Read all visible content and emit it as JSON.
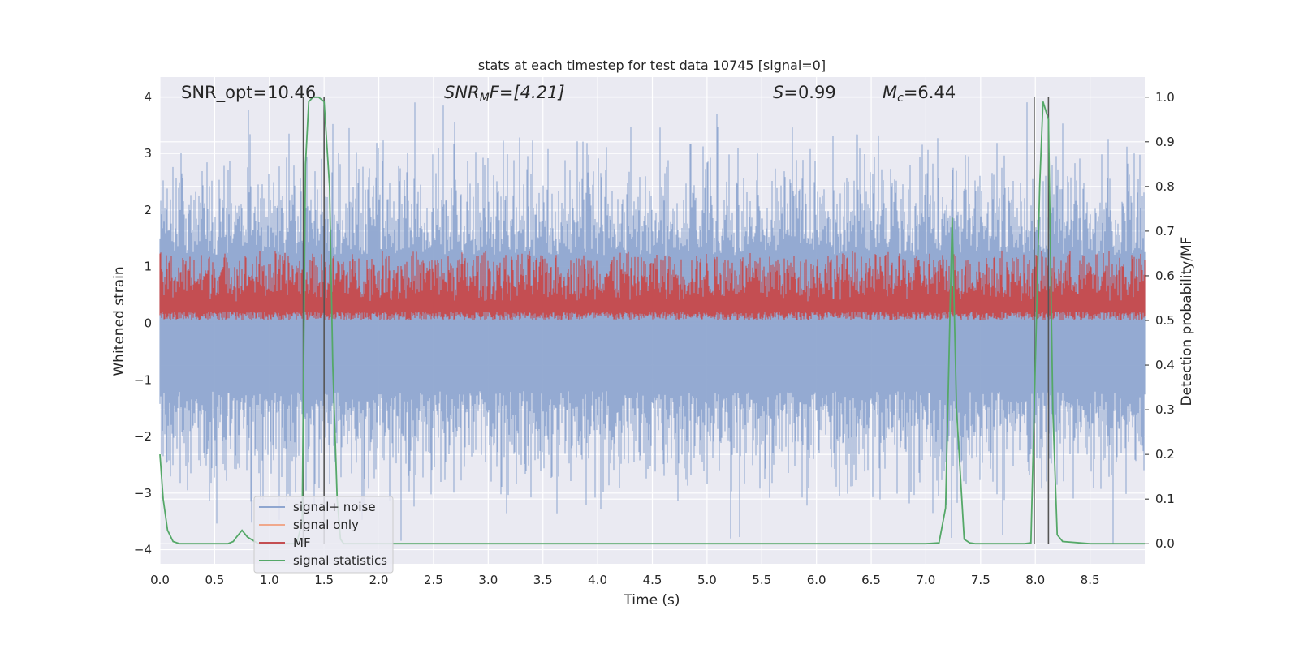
{
  "chart_data": {
    "type": "line",
    "title": "stats at each timestep for test data 10745 [signal=0]",
    "xlabel": "Time (s)",
    "ylabel": "Whitened strain",
    "y2label": "Detection probability/MF",
    "xlim": [
      0,
      9.0
    ],
    "ylim": [
      -4.25,
      4.35
    ],
    "y2lim": [
      -0.045,
      1.045
    ],
    "xticks": [
      "0.0",
      "0.5",
      "1.0",
      "1.5",
      "2.0",
      "2.5",
      "3.0",
      "3.5",
      "4.0",
      "4.5",
      "5.0",
      "5.5",
      "6.0",
      "6.5",
      "7.0",
      "7.5",
      "8.0",
      "8.5"
    ],
    "yticks": [
      "4",
      "3",
      "2",
      "1",
      "0",
      "−1",
      "−2",
      "−3",
      "−4"
    ],
    "y2ticks": [
      "1.0",
      "0.9",
      "0.8",
      "0.7",
      "0.6",
      "0.5",
      "0.4",
      "0.3",
      "0.2",
      "0.1",
      "0.0"
    ],
    "annotations": {
      "snr_opt": "SNR_opt=10.46",
      "snr_mf_sym": "SNR",
      "snr_mf_sub": "M",
      "snr_mf_rest": "F=[4.21]",
      "s_sym": "S",
      "s_val": "=0.99",
      "mc_sym": "M",
      "mc_sub": "c",
      "mc_val": "=6.44"
    },
    "legend": {
      "location": "lower-left",
      "entries": [
        {
          "label": "signal+ noise",
          "color": "#8fa6d0"
        },
        {
          "label": "signal only",
          "color": "#f0a88c"
        },
        {
          "label": "MF",
          "color": "#c44e52"
        },
        {
          "label": "signal statistics",
          "color": "#55a868"
        }
      ]
    },
    "series": [
      {
        "name": "signal+ noise",
        "color": "#8fa6d0",
        "kind": "noise",
        "amplitude_range": [
          -3.9,
          4.0
        ]
      },
      {
        "name": "signal only",
        "color": "#f0a88c",
        "kind": "flat",
        "values": [
          0
        ]
      },
      {
        "name": "MF",
        "color": "#c44e52",
        "kind": "noise",
        "axis": "y2",
        "amplitude_range": [
          0.5,
          0.64
        ]
      },
      {
        "name": "signal statistics",
        "color": "#55a868",
        "axis": "y2",
        "x": [
          0.0,
          0.03,
          0.07,
          0.12,
          0.18,
          0.25,
          0.4,
          0.55,
          0.62,
          0.67,
          0.7,
          0.75,
          0.8,
          0.9,
          1.0,
          1.1,
          1.2,
          1.25,
          1.3,
          1.33,
          1.36,
          1.4,
          1.45,
          1.5,
          1.55,
          1.58,
          1.62,
          1.65,
          1.68,
          2.0,
          3.0,
          4.0,
          5.0,
          6.0,
          7.0,
          7.12,
          7.18,
          7.24,
          7.28,
          7.35,
          7.4,
          7.45,
          7.9,
          7.96,
          8.0,
          8.04,
          8.07,
          8.12,
          8.16,
          8.2,
          8.25,
          8.5,
          9.0
        ],
        "values": [
          0.2,
          0.1,
          0.03,
          0.005,
          0.0,
          0.0,
          0.0,
          0.0,
          0.0,
          0.005,
          0.015,
          0.03,
          0.015,
          0.0,
          0.0,
          0.0,
          0.0,
          0.0,
          0.05,
          0.85,
          0.99,
          1.0,
          1.0,
          0.99,
          0.8,
          0.4,
          0.1,
          0.01,
          0.0,
          0.0,
          0.0,
          0.0,
          0.0,
          0.0,
          0.0,
          0.002,
          0.08,
          0.73,
          0.3,
          0.01,
          0.002,
          0.0,
          0.0,
          0.002,
          0.4,
          0.8,
          0.99,
          0.95,
          0.3,
          0.02,
          0.005,
          0.0,
          0.0
        ]
      }
    ],
    "vertical_lines_x": [
      1.31,
      1.5,
      7.99,
      8.12
    ]
  }
}
